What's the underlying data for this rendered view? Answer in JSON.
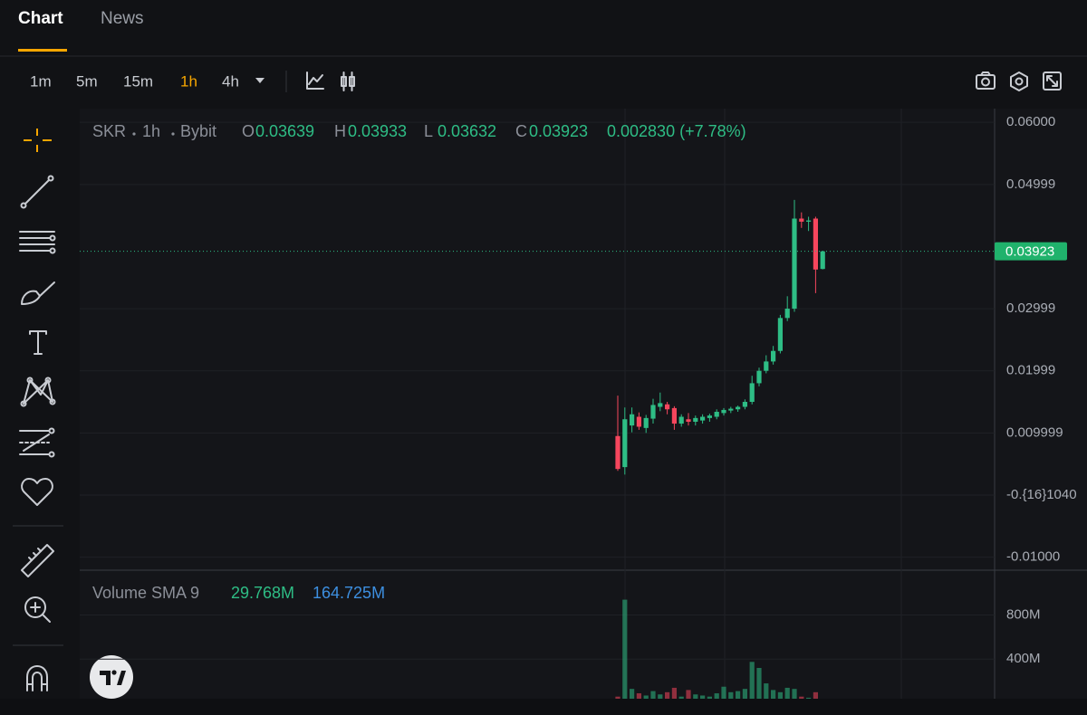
{
  "tabs": [
    {
      "label": "Chart",
      "active": true
    },
    {
      "label": "News",
      "active": false
    }
  ],
  "intervals": [
    {
      "label": "1m",
      "active": false
    },
    {
      "label": "5m",
      "active": false
    },
    {
      "label": "15m",
      "active": false
    },
    {
      "label": "1h",
      "active": true
    },
    {
      "label": "4h",
      "active": false
    }
  ],
  "legend": {
    "symbol": "SKR",
    "interval": "1h",
    "exchange": "Bybit",
    "fields": [
      {
        "key": "O",
        "value": "0.03639"
      },
      {
        "key": "H",
        "value": "0.03933"
      },
      {
        "key": "L",
        "value": "0.03632"
      },
      {
        "key": "C",
        "value": "0.03923"
      }
    ],
    "change": "0.002830 (+7.78%)"
  },
  "chart_data": [
    {
      "type": "candlestick",
      "up_color": "#2ebd85",
      "down_color": "#f6465d",
      "open": [
        0.0095,
        0.0045,
        0.0112,
        0.0126,
        0.0108,
        0.0123,
        0.0142,
        0.0146,
        0.014,
        0.0115,
        0.0122,
        0.0118,
        0.012,
        0.0124,
        0.0126,
        0.0132,
        0.0136,
        0.0138,
        0.0142,
        0.015,
        0.018,
        0.02,
        0.0215,
        0.0232,
        0.0285,
        0.03,
        0.0445,
        0.044,
        0.0445,
        0.03639
      ],
      "high": [
        0.016,
        0.0141,
        0.0141,
        0.0133,
        0.0129,
        0.0155,
        0.0165,
        0.015,
        0.0143,
        0.013,
        0.0132,
        0.0128,
        0.013,
        0.0131,
        0.0138,
        0.014,
        0.0142,
        0.0144,
        0.0154,
        0.0192,
        0.0205,
        0.0225,
        0.024,
        0.029,
        0.032,
        0.0475,
        0.0455,
        0.0448,
        0.0448,
        0.03933
      ],
      "low": [
        0.0039,
        0.0033,
        0.0101,
        0.0105,
        0.01,
        0.0115,
        0.0135,
        0.013,
        0.0105,
        0.011,
        0.0112,
        0.0112,
        0.0115,
        0.0118,
        0.0122,
        0.0128,
        0.0132,
        0.0134,
        0.0138,
        0.0146,
        0.0175,
        0.0196,
        0.021,
        0.0228,
        0.028,
        0.0295,
        0.043,
        0.0425,
        0.0325,
        0.03632
      ],
      "close": [
        0.0042,
        0.0122,
        0.013,
        0.011,
        0.0124,
        0.0145,
        0.0148,
        0.0138,
        0.0115,
        0.0126,
        0.0118,
        0.0124,
        0.0126,
        0.0128,
        0.0134,
        0.0137,
        0.0139,
        0.0142,
        0.015,
        0.018,
        0.02,
        0.0215,
        0.0232,
        0.0285,
        0.03,
        0.0445,
        0.044,
        0.0442,
        0.0363,
        0.03923
      ],
      "ylim": [
        -0.0118,
        0.0622
      ],
      "yticks": [
        {
          "value": 0.06,
          "label": "0.06000"
        },
        {
          "value": 0.04999,
          "label": "0.04999"
        },
        {
          "value": 0.02999,
          "label": "0.02999"
        },
        {
          "value": 0.01999,
          "label": "0.01999"
        },
        0.009999,
        {
          "value": -1.04e-17,
          "label": "-0.{16}1040"
        },
        {
          "value": -0.01,
          "label": "-0.01000"
        }
      ],
      "last_price": 0.03923,
      "grid": true
    },
    {
      "type": "bar",
      "title": "Volume SMA 9",
      "indicators": [
        {
          "value": "29.768M",
          "color": "#2ebd85"
        },
        {
          "value": "164.725M",
          "color": "#3d8fe0"
        }
      ],
      "values": [
        60000000,
        939000000,
        130000000,
        90000000,
        70000000,
        110000000,
        80000000,
        100000000,
        140000000,
        60000000,
        120000000,
        80000000,
        70000000,
        60000000,
        90000000,
        150000000,
        100000000,
        110000000,
        130000000,
        375000000,
        320000000,
        180000000,
        120000000,
        100000000,
        140000000,
        130000000,
        60000000,
        50000000,
        100000000,
        30000000
      ],
      "ylim": [
        0,
        1190000000
      ],
      "yticks": [
        {
          "value": 400000000,
          "label": "400M"
        },
        {
          "value": 800000000,
          "label": "800M"
        }
      ],
      "grid": true
    }
  ]
}
